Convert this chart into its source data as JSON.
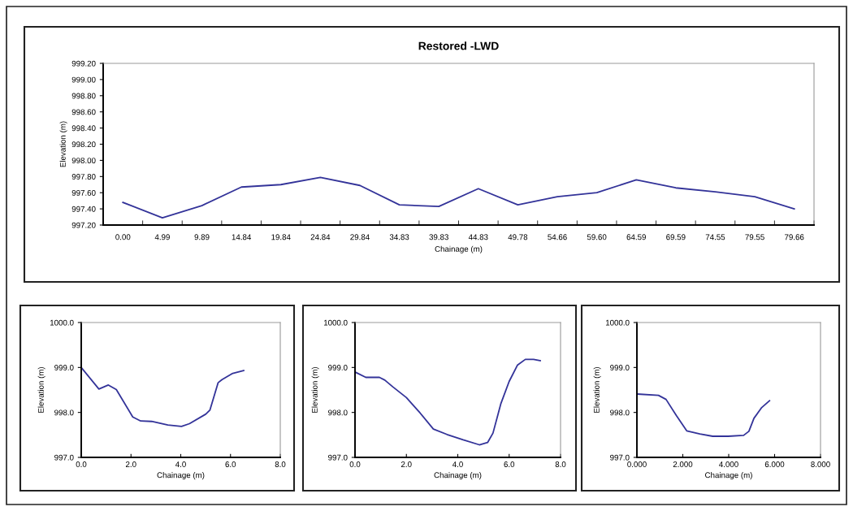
{
  "chart_data": [
    {
      "type": "line",
      "title": "Restored -LWD",
      "xlabel": "Chainage (m)",
      "ylabel": "Elevation (m)",
      "categories": [
        "0.00",
        "4.99",
        "9.89",
        "14.84",
        "19.84",
        "24.84",
        "29.84",
        "34.83",
        "39.83",
        "44.83",
        "49.78",
        "54.66",
        "59.60",
        "64.59",
        "69.59",
        "74.55",
        "79.55",
        "79.66"
      ],
      "series": [
        {
          "color": "#333399",
          "values": [
            997.48,
            997.29,
            997.44,
            997.67,
            997.7,
            997.79,
            997.69,
            997.45,
            997.43,
            997.65,
            997.45,
            997.55,
            997.6,
            997.76,
            997.66,
            997.61,
            997.55,
            997.4
          ]
        }
      ],
      "ylim": [
        997.2,
        999.2
      ],
      "yticks": [
        {
          "value": 997.2,
          "label": "997.20"
        },
        {
          "value": 997.4,
          "label": "997.40"
        },
        {
          "value": 997.6,
          "label": "997.60"
        },
        {
          "value": 997.8,
          "label": "997.80"
        },
        {
          "value": 998.0,
          "label": "998.00"
        },
        {
          "value": 998.2,
          "label": "998.20"
        },
        {
          "value": 998.4,
          "label": "998.40"
        },
        {
          "value": 998.6,
          "label": "998.60"
        },
        {
          "value": 998.8,
          "label": "998.80"
        },
        {
          "value": 999.0,
          "label": "999.00"
        },
        {
          "value": 999.2,
          "label": "999.20"
        }
      ],
      "grid": false,
      "legend": false,
      "marker": "none",
      "line_style": "solid"
    },
    {
      "type": "line",
      "xlabel": "Chainage (m)",
      "ylabel": "Elevation (m)",
      "series": [
        {
          "color": "#333399",
          "x": [
            0,
            0.71,
            1.09,
            1.41,
            2.07,
            2.39,
            2.83,
            3.48,
            4.03,
            4.35,
            5.0,
            5.17,
            5.5,
            5.66,
            6.09,
            6.53
          ],
          "values": [
            999.0,
            998.52,
            998.61,
            998.51,
            997.9,
            997.81,
            997.8,
            997.72,
            997.69,
            997.75,
            997.96,
            998.05,
            998.66,
            998.73,
            998.87,
            998.93
          ]
        }
      ],
      "xlim": [
        0,
        8
      ],
      "xticks": [
        {
          "value": 0,
          "label": "0.0"
        },
        {
          "value": 2,
          "label": "2.0"
        },
        {
          "value": 4,
          "label": "4.0"
        },
        {
          "value": 6,
          "label": "6.0"
        },
        {
          "value": 8,
          "label": "8.0"
        }
      ],
      "ylim": [
        997,
        1000
      ],
      "yticks": [
        {
          "value": 997,
          "label": "997.0"
        },
        {
          "value": 998,
          "label": "998.0"
        },
        {
          "value": 999,
          "label": "999.0"
        },
        {
          "value": 1000,
          "label": "1000.0"
        }
      ],
      "grid": false,
      "legend": false,
      "marker": "none",
      "line_style": "solid"
    },
    {
      "type": "line",
      "xlabel": "Chainage (m)",
      "ylabel": "Elevation (m)",
      "series": [
        {
          "color": "#333399",
          "x": [
            0,
            0.42,
            0.95,
            1.16,
            1.47,
            2.0,
            2.53,
            3.05,
            3.58,
            4.21,
            4.84,
            5.16,
            5.37,
            5.68,
            6.0,
            6.32,
            6.63,
            6.95,
            7.21
          ],
          "values": [
            998.9,
            998.78,
            998.78,
            998.72,
            998.57,
            998.33,
            997.99,
            997.63,
            997.51,
            997.39,
            997.28,
            997.33,
            997.54,
            998.2,
            998.69,
            999.05,
            999.18,
            999.18,
            999.15
          ]
        }
      ],
      "xlim": [
        0,
        8
      ],
      "xticks": [
        {
          "value": 0,
          "label": "0.0"
        },
        {
          "value": 2,
          "label": "2.0"
        },
        {
          "value": 4,
          "label": "4.0"
        },
        {
          "value": 6,
          "label": "6.0"
        },
        {
          "value": 8,
          "label": "8.0"
        }
      ],
      "ylim": [
        997,
        1000
      ],
      "yticks": [
        {
          "value": 997,
          "label": "997.0"
        },
        {
          "value": 998,
          "label": "998.0"
        },
        {
          "value": 999,
          "label": "999.0"
        },
        {
          "value": 1000,
          "label": "1000.0"
        }
      ],
      "grid": false,
      "legend": false,
      "marker": "none",
      "line_style": "solid"
    },
    {
      "type": "line",
      "xlabel": "Chainage (m)",
      "ylabel": "Elevation (m)",
      "series": [
        {
          "color": "#333399",
          "x": [
            0,
            0.94,
            1.27,
            1.72,
            2.17,
            2.74,
            3.3,
            3.98,
            4.65,
            4.88,
            5.1,
            5.44,
            5.78
          ],
          "values": [
            998.41,
            998.38,
            998.29,
            997.93,
            997.59,
            997.52,
            997.47,
            997.47,
            997.49,
            997.58,
            997.87,
            998.11,
            998.26
          ]
        }
      ],
      "xlim": [
        0,
        8
      ],
      "xticks": [
        {
          "value": 0,
          "label": "0.000"
        },
        {
          "value": 2,
          "label": "2.000"
        },
        {
          "value": 4,
          "label": "4.000"
        },
        {
          "value": 6,
          "label": "6.000"
        },
        {
          "value": 8,
          "label": "8.000"
        }
      ],
      "ylim": [
        997,
        1000
      ],
      "yticks": [
        {
          "value": 997,
          "label": "997.0"
        },
        {
          "value": 998,
          "label": "998.0"
        },
        {
          "value": 999,
          "label": "999.0"
        },
        {
          "value": 1000,
          "label": "1000.0"
        }
      ],
      "grid": false,
      "legend": false,
      "marker": "none",
      "line_style": "solid"
    }
  ]
}
